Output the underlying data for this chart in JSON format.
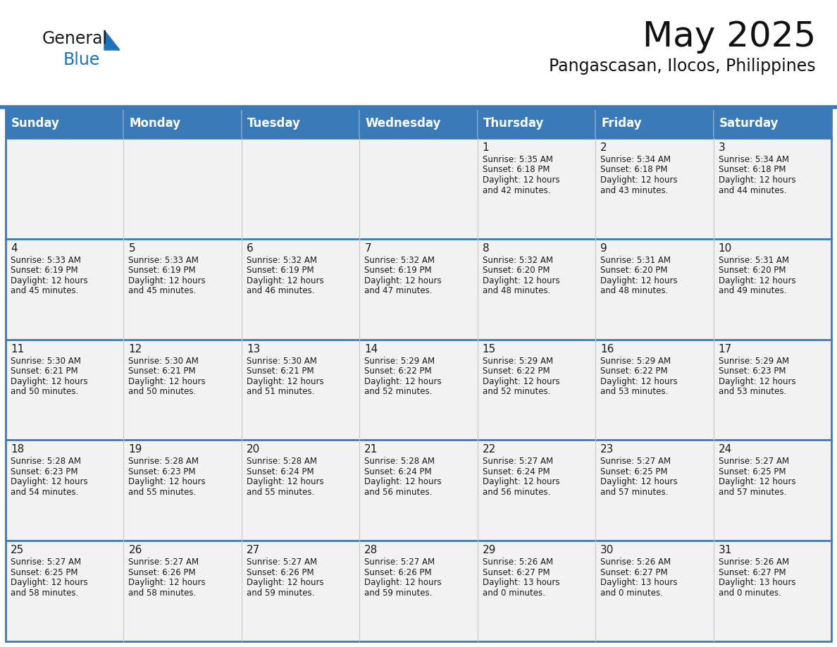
{
  "title": "May 2025",
  "subtitle": "Pangascasan, Ilocos, Philippines",
  "header_color": "#3a7ab8",
  "header_text_color": "#ffffff",
  "cell_bg_color": "#f2f2f2",
  "cell_bg_alt_color": "#ffffff",
  "border_color": "#3a7ab8",
  "row_sep_color": "#3a7ab8",
  "col_sep_color": "#c8c8c8",
  "day_headers": [
    "Sunday",
    "Monday",
    "Tuesday",
    "Wednesday",
    "Thursday",
    "Friday",
    "Saturday"
  ],
  "days": [
    {
      "day": 1,
      "col": 4,
      "row": 0,
      "sunrise": "5:35 AM",
      "sunset": "6:18 PM",
      "daylight_h": "12 hours",
      "daylight_m": "42 minutes."
    },
    {
      "day": 2,
      "col": 5,
      "row": 0,
      "sunrise": "5:34 AM",
      "sunset": "6:18 PM",
      "daylight_h": "12 hours",
      "daylight_m": "43 minutes."
    },
    {
      "day": 3,
      "col": 6,
      "row": 0,
      "sunrise": "5:34 AM",
      "sunset": "6:18 PM",
      "daylight_h": "12 hours",
      "daylight_m": "44 minutes."
    },
    {
      "day": 4,
      "col": 0,
      "row": 1,
      "sunrise": "5:33 AM",
      "sunset": "6:19 PM",
      "daylight_h": "12 hours",
      "daylight_m": "45 minutes."
    },
    {
      "day": 5,
      "col": 1,
      "row": 1,
      "sunrise": "5:33 AM",
      "sunset": "6:19 PM",
      "daylight_h": "12 hours",
      "daylight_m": "45 minutes."
    },
    {
      "day": 6,
      "col": 2,
      "row": 1,
      "sunrise": "5:32 AM",
      "sunset": "6:19 PM",
      "daylight_h": "12 hours",
      "daylight_m": "46 minutes."
    },
    {
      "day": 7,
      "col": 3,
      "row": 1,
      "sunrise": "5:32 AM",
      "sunset": "6:19 PM",
      "daylight_h": "12 hours",
      "daylight_m": "47 minutes."
    },
    {
      "day": 8,
      "col": 4,
      "row": 1,
      "sunrise": "5:32 AM",
      "sunset": "6:20 PM",
      "daylight_h": "12 hours",
      "daylight_m": "48 minutes."
    },
    {
      "day": 9,
      "col": 5,
      "row": 1,
      "sunrise": "5:31 AM",
      "sunset": "6:20 PM",
      "daylight_h": "12 hours",
      "daylight_m": "48 minutes."
    },
    {
      "day": 10,
      "col": 6,
      "row": 1,
      "sunrise": "5:31 AM",
      "sunset": "6:20 PM",
      "daylight_h": "12 hours",
      "daylight_m": "49 minutes."
    },
    {
      "day": 11,
      "col": 0,
      "row": 2,
      "sunrise": "5:30 AM",
      "sunset": "6:21 PM",
      "daylight_h": "12 hours",
      "daylight_m": "50 minutes."
    },
    {
      "day": 12,
      "col": 1,
      "row": 2,
      "sunrise": "5:30 AM",
      "sunset": "6:21 PM",
      "daylight_h": "12 hours",
      "daylight_m": "50 minutes."
    },
    {
      "day": 13,
      "col": 2,
      "row": 2,
      "sunrise": "5:30 AM",
      "sunset": "6:21 PM",
      "daylight_h": "12 hours",
      "daylight_m": "51 minutes."
    },
    {
      "day": 14,
      "col": 3,
      "row": 2,
      "sunrise": "5:29 AM",
      "sunset": "6:22 PM",
      "daylight_h": "12 hours",
      "daylight_m": "52 minutes."
    },
    {
      "day": 15,
      "col": 4,
      "row": 2,
      "sunrise": "5:29 AM",
      "sunset": "6:22 PM",
      "daylight_h": "12 hours",
      "daylight_m": "52 minutes."
    },
    {
      "day": 16,
      "col": 5,
      "row": 2,
      "sunrise": "5:29 AM",
      "sunset": "6:22 PM",
      "daylight_h": "12 hours",
      "daylight_m": "53 minutes."
    },
    {
      "day": 17,
      "col": 6,
      "row": 2,
      "sunrise": "5:29 AM",
      "sunset": "6:23 PM",
      "daylight_h": "12 hours",
      "daylight_m": "53 minutes."
    },
    {
      "day": 18,
      "col": 0,
      "row": 3,
      "sunrise": "5:28 AM",
      "sunset": "6:23 PM",
      "daylight_h": "12 hours",
      "daylight_m": "54 minutes."
    },
    {
      "day": 19,
      "col": 1,
      "row": 3,
      "sunrise": "5:28 AM",
      "sunset": "6:23 PM",
      "daylight_h": "12 hours",
      "daylight_m": "55 minutes."
    },
    {
      "day": 20,
      "col": 2,
      "row": 3,
      "sunrise": "5:28 AM",
      "sunset": "6:24 PM",
      "daylight_h": "12 hours",
      "daylight_m": "55 minutes."
    },
    {
      "day": 21,
      "col": 3,
      "row": 3,
      "sunrise": "5:28 AM",
      "sunset": "6:24 PM",
      "daylight_h": "12 hours",
      "daylight_m": "56 minutes."
    },
    {
      "day": 22,
      "col": 4,
      "row": 3,
      "sunrise": "5:27 AM",
      "sunset": "6:24 PM",
      "daylight_h": "12 hours",
      "daylight_m": "56 minutes."
    },
    {
      "day": 23,
      "col": 5,
      "row": 3,
      "sunrise": "5:27 AM",
      "sunset": "6:25 PM",
      "daylight_h": "12 hours",
      "daylight_m": "57 minutes."
    },
    {
      "day": 24,
      "col": 6,
      "row": 3,
      "sunrise": "5:27 AM",
      "sunset": "6:25 PM",
      "daylight_h": "12 hours",
      "daylight_m": "57 minutes."
    },
    {
      "day": 25,
      "col": 0,
      "row": 4,
      "sunrise": "5:27 AM",
      "sunset": "6:25 PM",
      "daylight_h": "12 hours",
      "daylight_m": "58 minutes."
    },
    {
      "day": 26,
      "col": 1,
      "row": 4,
      "sunrise": "5:27 AM",
      "sunset": "6:26 PM",
      "daylight_h": "12 hours",
      "daylight_m": "58 minutes."
    },
    {
      "day": 27,
      "col": 2,
      "row": 4,
      "sunrise": "5:27 AM",
      "sunset": "6:26 PM",
      "daylight_h": "12 hours",
      "daylight_m": "59 minutes."
    },
    {
      "day": 28,
      "col": 3,
      "row": 4,
      "sunrise": "5:27 AM",
      "sunset": "6:26 PM",
      "daylight_h": "12 hours",
      "daylight_m": "59 minutes."
    },
    {
      "day": 29,
      "col": 4,
      "row": 4,
      "sunrise": "5:26 AM",
      "sunset": "6:27 PM",
      "daylight_h": "13 hours",
      "daylight_m": "0 minutes."
    },
    {
      "day": 30,
      "col": 5,
      "row": 4,
      "sunrise": "5:26 AM",
      "sunset": "6:27 PM",
      "daylight_h": "13 hours",
      "daylight_m": "0 minutes."
    },
    {
      "day": 31,
      "col": 6,
      "row": 4,
      "sunrise": "5:26 AM",
      "sunset": "6:27 PM",
      "daylight_h": "13 hours",
      "daylight_m": "0 minutes."
    }
  ],
  "logo_color_general": "#1a1a1a",
  "logo_color_blue": "#1e72b8",
  "logo_triangle_color": "#1e72b8",
  "title_fontsize": 36,
  "subtitle_fontsize": 17,
  "header_fontsize": 12,
  "day_num_fontsize": 11,
  "cell_text_fontsize": 8.5,
  "fig_width": 11.88,
  "fig_height": 9.18
}
